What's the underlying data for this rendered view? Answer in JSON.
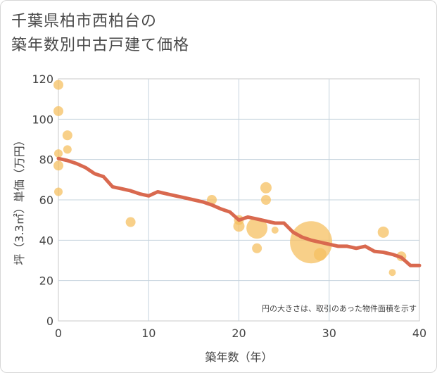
{
  "title_lines": [
    "千葉県柏市西柏台の",
    "築年数別中古戸建て価格"
  ],
  "chart_data": {
    "type": "scatter",
    "title": "千葉県柏市西柏台の築年数別中古戸建て価格",
    "xlabel": "築年数（年）",
    "ylabel": "坪（3.3㎡）単価（万円）",
    "xlim": [
      0,
      40
    ],
    "ylim": [
      0,
      120
    ],
    "xticks": [
      0,
      10,
      20,
      30,
      40
    ],
    "yticks": [
      0,
      20,
      40,
      60,
      80,
      100,
      120
    ],
    "grid": true,
    "note": "円の大きさは、取引のあった物件面積を示す",
    "bubble_color": "#f5c061",
    "line_color": "#d9694f",
    "points": [
      {
        "x": 0,
        "y": 117,
        "r": 7
      },
      {
        "x": 0,
        "y": 104,
        "r": 7
      },
      {
        "x": 0,
        "y": 83,
        "r": 6
      },
      {
        "x": 0,
        "y": 77,
        "r": 7
      },
      {
        "x": 0,
        "y": 64,
        "r": 6
      },
      {
        "x": 1,
        "y": 92,
        "r": 7
      },
      {
        "x": 1,
        "y": 85,
        "r": 6
      },
      {
        "x": 8,
        "y": 49,
        "r": 7
      },
      {
        "x": 17,
        "y": 60,
        "r": 7
      },
      {
        "x": 20,
        "y": 50,
        "r": 7
      },
      {
        "x": 20,
        "y": 47,
        "r": 8
      },
      {
        "x": 22,
        "y": 46,
        "r": 15
      },
      {
        "x": 22,
        "y": 36,
        "r": 7
      },
      {
        "x": 23,
        "y": 66,
        "r": 8
      },
      {
        "x": 23,
        "y": 60,
        "r": 7
      },
      {
        "x": 24,
        "y": 45,
        "r": 5
      },
      {
        "x": 28,
        "y": 39,
        "r": 30
      },
      {
        "x": 29,
        "y": 33,
        "r": 9
      },
      {
        "x": 36,
        "y": 44,
        "r": 8
      },
      {
        "x": 37,
        "y": 24,
        "r": 5
      },
      {
        "x": 38,
        "y": 32,
        "r": 7
      }
    ],
    "trend": {
      "x": [
        0,
        1,
        2,
        3,
        4,
        5,
        6,
        7,
        8,
        9,
        10,
        11,
        12,
        13,
        14,
        15,
        16,
        17,
        18,
        19,
        20,
        21,
        22,
        23,
        24,
        25,
        26,
        27,
        28,
        29,
        30,
        31,
        32,
        33,
        34,
        35,
        36,
        37,
        38,
        39,
        40
      ],
      "y": [
        80.5,
        79.5,
        78,
        76,
        73,
        71.5,
        66.5,
        65.5,
        64.5,
        63,
        62,
        64,
        63,
        62,
        61,
        60,
        59,
        57.5,
        55.5,
        54,
        50,
        51.5,
        50.5,
        49.5,
        48.5,
        48.5,
        44,
        41.5,
        40,
        39,
        38,
        37,
        37,
        36,
        37,
        34.5,
        34,
        33,
        31.5,
        27.5,
        27.5
      ]
    }
  }
}
